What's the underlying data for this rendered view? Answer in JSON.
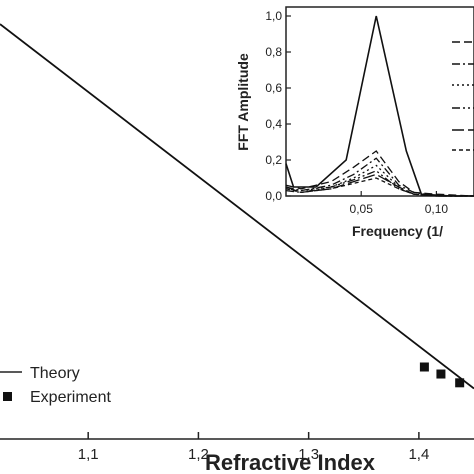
{
  "chart_data": [
    {
      "type": "line",
      "xlabel": "Refractive Index",
      "x_ticks": [
        "1,1",
        "1,2",
        "1,3",
        "1,4"
      ],
      "xlim": [
        1.02,
        1.45
      ],
      "ylim": [
        0,
        1
      ],
      "series": [
        {
          "name": "Theory",
          "kind": "line",
          "x": [
            1.02,
            1.45
          ],
          "y": [
            0.945,
            0.115
          ]
        },
        {
          "name": "Experiment",
          "kind": "scatter",
          "x": [
            1.405,
            1.42,
            1.437
          ],
          "y": [
            0.164,
            0.148,
            0.128
          ]
        }
      ],
      "legend": {
        "position": "bottom-left"
      }
    },
    {
      "type": "line",
      "xlabel": "Frequency (1/",
      "ylabel": "FFT Amplitude",
      "x_ticks": [
        "0,05",
        "0,10"
      ],
      "y_ticks": [
        "0,0",
        "0,2",
        "0,4",
        "0,6",
        "0,8",
        "1,0"
      ],
      "xlim": [
        0.0,
        0.125
      ],
      "ylim": [
        0,
        1.05
      ],
      "series": [
        {
          "style": "solid",
          "x": [
            0.0,
            0.005,
            0.02,
            0.04,
            0.06,
            0.08,
            0.09,
            0.11,
            0.125
          ],
          "y": [
            0.18,
            0.05,
            0.05,
            0.2,
            1.0,
            0.25,
            0.01,
            0.0,
            0.0
          ]
        },
        {
          "style": "dash",
          "x": [
            0.0,
            0.01,
            0.03,
            0.045,
            0.06,
            0.075,
            0.085,
            0.1,
            0.125
          ],
          "y": [
            0.06,
            0.04,
            0.08,
            0.16,
            0.25,
            0.08,
            0.02,
            0.01,
            0.0
          ]
        },
        {
          "style": "dashdot",
          "x": [
            0.0,
            0.01,
            0.03,
            0.045,
            0.06,
            0.075,
            0.085,
            0.1,
            0.125
          ],
          "y": [
            0.05,
            0.03,
            0.06,
            0.12,
            0.21,
            0.06,
            0.02,
            0.0,
            0.0
          ]
        },
        {
          "style": "dot",
          "x": [
            0.0,
            0.01,
            0.03,
            0.045,
            0.06,
            0.075,
            0.085,
            0.1,
            0.125
          ],
          "y": [
            0.04,
            0.03,
            0.05,
            0.1,
            0.17,
            0.05,
            0.01,
            0.0,
            0.0
          ]
        },
        {
          "style": "dashdotdot",
          "x": [
            0.0,
            0.01,
            0.03,
            0.045,
            0.06,
            0.075,
            0.085,
            0.1,
            0.125
          ],
          "y": [
            0.03,
            0.02,
            0.05,
            0.09,
            0.14,
            0.04,
            0.01,
            0.0,
            0.0
          ]
        },
        {
          "style": "longdash",
          "x": [
            0.0,
            0.01,
            0.03,
            0.045,
            0.06,
            0.075,
            0.085,
            0.1,
            0.125
          ],
          "y": [
            0.05,
            0.02,
            0.04,
            0.08,
            0.12,
            0.05,
            0.01,
            0.0,
            0.0
          ]
        },
        {
          "style": "shortdash",
          "x": [
            0.0,
            0.01,
            0.03,
            0.045,
            0.06,
            0.075,
            0.085,
            0.1,
            0.125
          ],
          "y": [
            0.04,
            0.02,
            0.04,
            0.07,
            0.1,
            0.04,
            0.01,
            0.0,
            0.0
          ]
        }
      ]
    }
  ]
}
